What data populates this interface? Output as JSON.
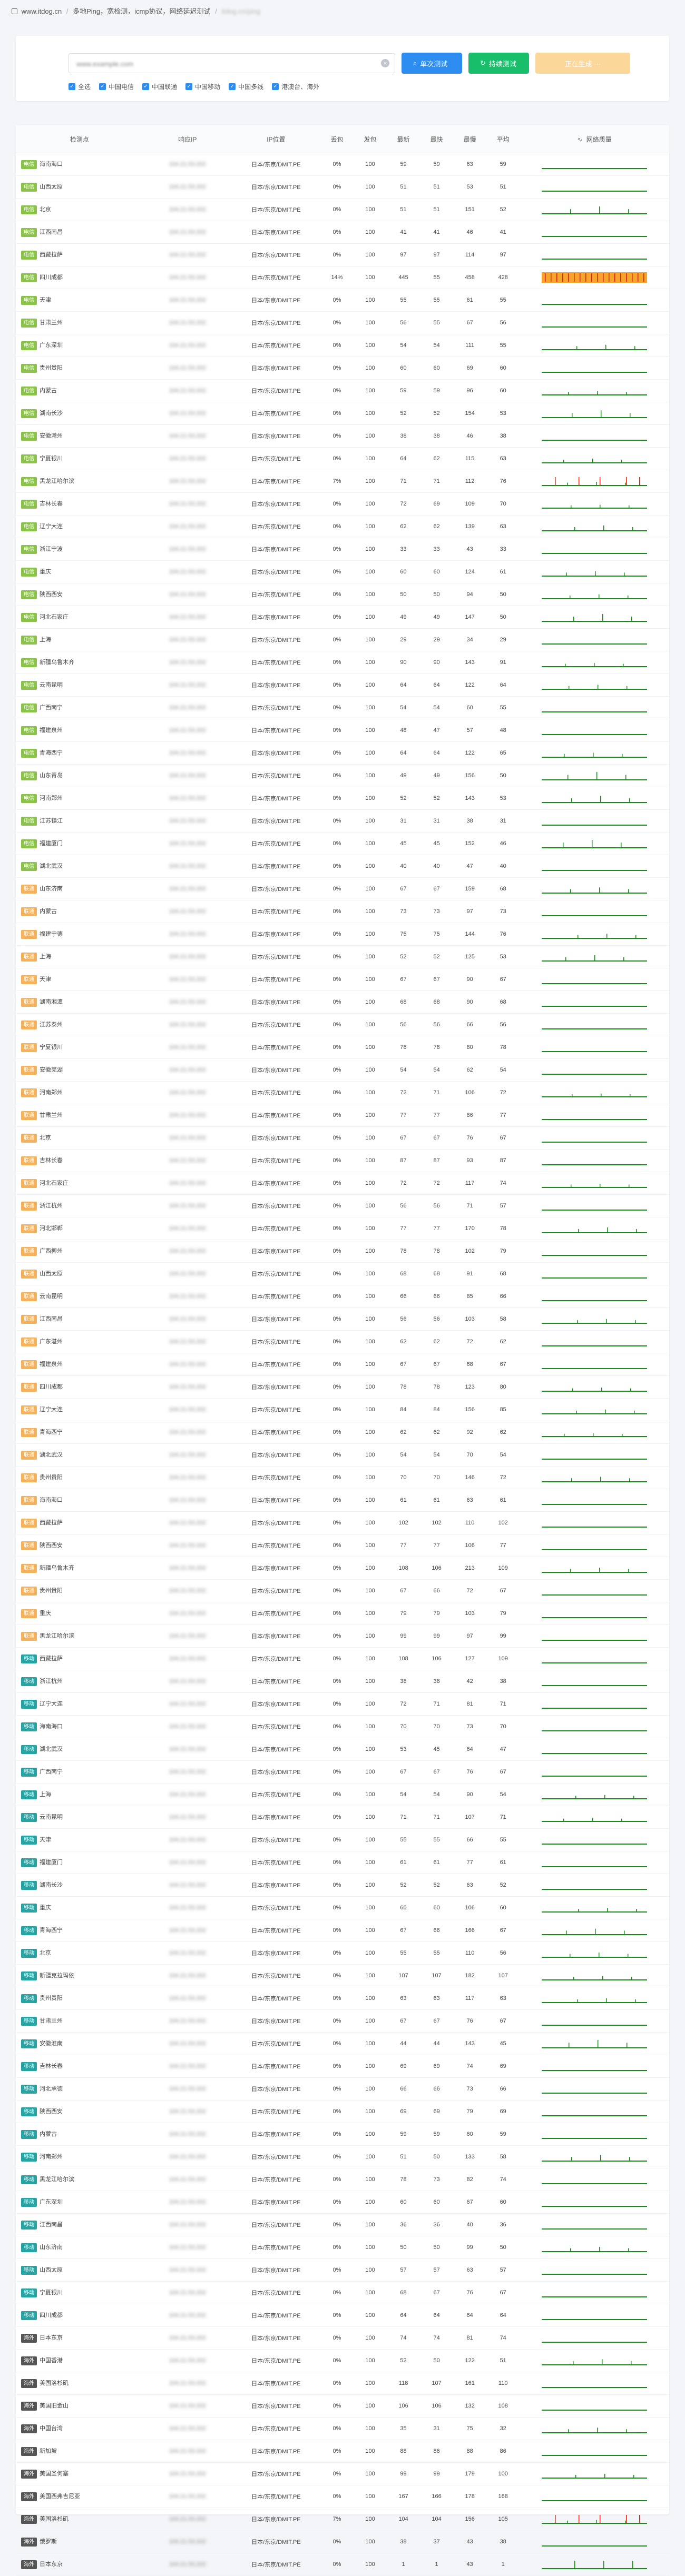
{
  "breadcrumb": {
    "home": "www.itdog.cn",
    "page": "多地Ping，宽检测，icmp协议，网络延迟测试",
    "current": "itdog.cn/ping"
  },
  "search": {
    "value": "www.example.com",
    "clear_icon": "close-icon",
    "single_test": "单次测试",
    "continuous_test": "持续测试",
    "download_report": "正在生成 ···"
  },
  "filters": [
    "全选",
    "中国电信",
    "中国联通",
    "中国移动",
    "中国多线",
    "港澳台、海外"
  ],
  "table": {
    "headers": [
      "检测点",
      "响应IP",
      "IP位置",
      "丢包",
      "发包",
      "最新",
      "最快",
      "最慢",
      "平均",
      "网络质量"
    ],
    "ip_placeholder": "104.21.53.202",
    "location": "日本/东京/DMIT.PE",
    "rows": [
      [
        "电信",
        "海南海口",
        "0%",
        "100",
        "59",
        "59",
        "63",
        "59"
      ],
      [
        "电信",
        "山西太原",
        "0%",
        "100",
        "51",
        "51",
        "53",
        "51"
      ],
      [
        "电信",
        "北京",
        "0%",
        "100",
        "51",
        "51",
        "151",
        "52"
      ],
      [
        "电信",
        "江西南昌",
        "0%",
        "100",
        "41",
        "41",
        "46",
        "41"
      ],
      [
        "电信",
        "西藏拉萨",
        "0%",
        "100",
        "97",
        "97",
        "114",
        "97"
      ],
      [
        "电信",
        "四川成都",
        "14%",
        "100",
        "445",
        "55",
        "458",
        "428"
      ],
      [
        "电信",
        "天津",
        "0%",
        "100",
        "55",
        "55",
        "61",
        "55"
      ],
      [
        "电信",
        "甘肃兰州",
        "0%",
        "100",
        "56",
        "55",
        "67",
        "56"
      ],
      [
        "电信",
        "广东深圳",
        "0%",
        "100",
        "54",
        "54",
        "111",
        "55"
      ],
      [
        "电信",
        "贵州贵阳",
        "0%",
        "100",
        "60",
        "60",
        "69",
        "60"
      ],
      [
        "电信",
        "内蒙古",
        "0%",
        "100",
        "59",
        "59",
        "96",
        "60"
      ],
      [
        "电信",
        "湖南长沙",
        "0%",
        "100",
        "52",
        "52",
        "154",
        "53"
      ],
      [
        "电信",
        "安徽滁州",
        "0%",
        "100",
        "38",
        "38",
        "46",
        "38"
      ],
      [
        "电信",
        "宁夏银川",
        "0%",
        "100",
        "64",
        "62",
        "115",
        "63"
      ],
      [
        "电信",
        "黑龙江哈尔滨",
        "7%",
        "100",
        "71",
        "71",
        "112",
        "76"
      ],
      [
        "电信",
        "吉林长春",
        "0%",
        "100",
        "72",
        "69",
        "109",
        "70"
      ],
      [
        "电信",
        "辽宁大连",
        "0%",
        "100",
        "62",
        "62",
        "139",
        "63"
      ],
      [
        "电信",
        "浙江宁波",
        "0%",
        "100",
        "33",
        "33",
        "43",
        "33"
      ],
      [
        "电信",
        "重庆",
        "0%",
        "100",
        "60",
        "60",
        "124",
        "61"
      ],
      [
        "电信",
        "陕西西安",
        "0%",
        "100",
        "50",
        "50",
        "94",
        "50"
      ],
      [
        "电信",
        "河北石家庄",
        "0%",
        "100",
        "49",
        "49",
        "147",
        "50"
      ],
      [
        "电信",
        "上海",
        "0%",
        "100",
        "29",
        "29",
        "34",
        "29"
      ],
      [
        "电信",
        "新疆乌鲁木齐",
        "0%",
        "100",
        "90",
        "90",
        "143",
        "91"
      ],
      [
        "电信",
        "云南昆明",
        "0%",
        "100",
        "64",
        "64",
        "122",
        "64"
      ],
      [
        "电信",
        "广西南宁",
        "0%",
        "100",
        "54",
        "54",
        "60",
        "55"
      ],
      [
        "电信",
        "福建泉州",
        "0%",
        "100",
        "48",
        "47",
        "57",
        "48"
      ],
      [
        "电信",
        "青海西宁",
        "0%",
        "100",
        "64",
        "64",
        "122",
        "65"
      ],
      [
        "电信",
        "山东青岛",
        "0%",
        "100",
        "49",
        "49",
        "156",
        "50"
      ],
      [
        "电信",
        "河南郑州",
        "0%",
        "100",
        "52",
        "52",
        "143",
        "53"
      ],
      [
        "电信",
        "江苏镇江",
        "0%",
        "100",
        "31",
        "31",
        "38",
        "31"
      ],
      [
        "电信",
        "福建厦门",
        "0%",
        "100",
        "45",
        "45",
        "152",
        "46"
      ],
      [
        "电信",
        "湖北武汉",
        "0%",
        "100",
        "40",
        "40",
        "47",
        "40"
      ],
      [
        "联通",
        "山东济南",
        "0%",
        "100",
        "67",
        "67",
        "159",
        "68"
      ],
      [
        "联通",
        "内蒙古",
        "0%",
        "100",
        "73",
        "73",
        "97",
        "73"
      ],
      [
        "联通",
        "福建宁德",
        "0%",
        "100",
        "75",
        "75",
        "144",
        "76"
      ],
      [
        "联通",
        "上海",
        "0%",
        "100",
        "52",
        "52",
        "125",
        "53"
      ],
      [
        "联通",
        "天津",
        "0%",
        "100",
        "67",
        "67",
        "90",
        "67"
      ],
      [
        "联通",
        "湖南湘潭",
        "0%",
        "100",
        "68",
        "68",
        "90",
        "68"
      ],
      [
        "联通",
        "江苏泰州",
        "0%",
        "100",
        "56",
        "56",
        "66",
        "56"
      ],
      [
        "联通",
        "宁夏银川",
        "0%",
        "100",
        "78",
        "78",
        "80",
        "78"
      ],
      [
        "联通",
        "安徽芜湖",
        "0%",
        "100",
        "54",
        "54",
        "62",
        "54"
      ],
      [
        "联通",
        "河南郑州",
        "0%",
        "100",
        "72",
        "71",
        "106",
        "72"
      ],
      [
        "联通",
        "甘肃兰州",
        "0%",
        "100",
        "77",
        "77",
        "86",
        "77"
      ],
      [
        "联通",
        "北京",
        "0%",
        "100",
        "67",
        "67",
        "76",
        "67"
      ],
      [
        "联通",
        "吉林长春",
        "0%",
        "100",
        "87",
        "87",
        "93",
        "87"
      ],
      [
        "联通",
        "河北石家庄",
        "0%",
        "100",
        "72",
        "72",
        "117",
        "74"
      ],
      [
        "联通",
        "浙江杭州",
        "0%",
        "100",
        "56",
        "56",
        "71",
        "57"
      ],
      [
        "联通",
        "河北邯郸",
        "0%",
        "100",
        "77",
        "77",
        "170",
        "78"
      ],
      [
        "联通",
        "广西柳州",
        "0%",
        "100",
        "78",
        "78",
        "102",
        "79"
      ],
      [
        "联通",
        "山西太原",
        "0%",
        "100",
        "68",
        "68",
        "91",
        "68"
      ],
      [
        "联通",
        "云南昆明",
        "0%",
        "100",
        "66",
        "66",
        "85",
        "66"
      ],
      [
        "联通",
        "江西南昌",
        "0%",
        "100",
        "56",
        "56",
        "103",
        "58"
      ],
      [
        "联通",
        "广东湛州",
        "0%",
        "100",
        "62",
        "62",
        "72",
        "62"
      ],
      [
        "联通",
        "福建泉州",
        "0%",
        "100",
        "67",
        "67",
        "68",
        "67"
      ],
      [
        "联通",
        "四川成都",
        "0%",
        "100",
        "78",
        "78",
        "123",
        "80"
      ],
      [
        "联通",
        "辽宁大连",
        "0%",
        "100",
        "84",
        "84",
        "156",
        "85"
      ],
      [
        "联通",
        "青海西宁",
        "0%",
        "100",
        "62",
        "62",
        "92",
        "62"
      ],
      [
        "联通",
        "湖北武汉",
        "0%",
        "100",
        "54",
        "54",
        "70",
        "54"
      ],
      [
        "联通",
        "贵州贵阳",
        "0%",
        "100",
        "70",
        "70",
        "146",
        "72"
      ],
      [
        "联通",
        "海南海口",
        "0%",
        "100",
        "61",
        "61",
        "63",
        "61"
      ],
      [
        "联通",
        "西藏拉萨",
        "0%",
        "100",
        "102",
        "102",
        "110",
        "102"
      ],
      [
        "联通",
        "陕西西安",
        "0%",
        "100",
        "77",
        "77",
        "106",
        "77"
      ],
      [
        "联通",
        "新疆乌鲁木齐",
        "0%",
        "100",
        "108",
        "106",
        "213",
        "109"
      ],
      [
        "联通",
        "贵州贵阳",
        "0%",
        "100",
        "67",
        "66",
        "72",
        "67"
      ],
      [
        "联通",
        "重庆",
        "0%",
        "100",
        "79",
        "79",
        "103",
        "79"
      ],
      [
        "联通",
        "黑龙江哈尔滨",
        "0%",
        "100",
        "99",
        "99",
        "97",
        "99"
      ],
      [
        "移动",
        "西藏拉萨",
        "0%",
        "100",
        "108",
        "106",
        "127",
        "109"
      ],
      [
        "移动",
        "浙江杭州",
        "0%",
        "100",
        "38",
        "38",
        "42",
        "38"
      ],
      [
        "移动",
        "辽宁大连",
        "0%",
        "100",
        "72",
        "71",
        "81",
        "71"
      ],
      [
        "移动",
        "海南海口",
        "0%",
        "100",
        "70",
        "70",
        "73",
        "70"
      ],
      [
        "移动",
        "湖北武汉",
        "0%",
        "100",
        "53",
        "45",
        "64",
        "47"
      ],
      [
        "移动",
        "广西南宁",
        "0%",
        "100",
        "67",
        "67",
        "76",
        "67"
      ],
      [
        "移动",
        "上海",
        "0%",
        "100",
        "54",
        "54",
        "90",
        "54"
      ],
      [
        "移动",
        "云南昆明",
        "0%",
        "100",
        "71",
        "71",
        "107",
        "71"
      ],
      [
        "移动",
        "天津",
        "0%",
        "100",
        "55",
        "55",
        "66",
        "55"
      ],
      [
        "移动",
        "福建厦门",
        "0%",
        "100",
        "61",
        "61",
        "77",
        "61"
      ],
      [
        "移动",
        "湖南长沙",
        "0%",
        "100",
        "52",
        "52",
        "63",
        "52"
      ],
      [
        "移动",
        "重庆",
        "0%",
        "100",
        "60",
        "60",
        "106",
        "60"
      ],
      [
        "移动",
        "青海西宁",
        "0%",
        "100",
        "67",
        "66",
        "166",
        "67"
      ],
      [
        "移动",
        "北京",
        "0%",
        "100",
        "55",
        "55",
        "110",
        "56"
      ],
      [
        "移动",
        "新疆克拉玛依",
        "0%",
        "100",
        "107",
        "107",
        "182",
        "107"
      ],
      [
        "移动",
        "贵州贵阳",
        "0%",
        "100",
        "63",
        "63",
        "117",
        "63"
      ],
      [
        "移动",
        "甘肃兰州",
        "0%",
        "100",
        "67",
        "67",
        "76",
        "67"
      ],
      [
        "移动",
        "安徽淮南",
        "0%",
        "100",
        "44",
        "44",
        "143",
        "45"
      ],
      [
        "移动",
        "吉林长春",
        "0%",
        "100",
        "69",
        "69",
        "74",
        "69"
      ],
      [
        "移动",
        "河北承德",
        "0%",
        "100",
        "66",
        "66",
        "73",
        "66"
      ],
      [
        "移动",
        "陕西西安",
        "0%",
        "100",
        "69",
        "69",
        "79",
        "69"
      ],
      [
        "移动",
        "内蒙古",
        "0%",
        "100",
        "59",
        "59",
        "60",
        "59"
      ],
      [
        "移动",
        "河南郑州",
        "0%",
        "100",
        "51",
        "50",
        "133",
        "58"
      ],
      [
        "移动",
        "黑龙江哈尔滨",
        "0%",
        "100",
        "78",
        "73",
        "82",
        "74"
      ],
      [
        "移动",
        "广东深圳",
        "0%",
        "100",
        "60",
        "60",
        "67",
        "60"
      ],
      [
        "移动",
        "江西南昌",
        "0%",
        "100",
        "36",
        "36",
        "40",
        "36"
      ],
      [
        "移动",
        "山东济南",
        "0%",
        "100",
        "50",
        "50",
        "99",
        "50"
      ],
      [
        "移动",
        "山西太原",
        "0%",
        "100",
        "57",
        "57",
        "63",
        "57"
      ],
      [
        "移动",
        "宁夏银川",
        "0%",
        "100",
        "68",
        "67",
        "76",
        "67"
      ],
      [
        "移动",
        "四川成都",
        "0%",
        "100",
        "64",
        "64",
        "64",
        "64"
      ],
      [
        "海外",
        "日本东京",
        "0%",
        "100",
        "74",
        "74",
        "81",
        "74"
      ],
      [
        "海外",
        "中国香港",
        "0%",
        "100",
        "52",
        "50",
        "122",
        "51"
      ],
      [
        "海外",
        "美国洛杉矶",
        "0%",
        "100",
        "118",
        "107",
        "161",
        "110"
      ],
      [
        "海外",
        "美国旧金山",
        "0%",
        "100",
        "106",
        "106",
        "132",
        "108"
      ],
      [
        "海外",
        "中国台湾",
        "0%",
        "100",
        "35",
        "31",
        "75",
        "32"
      ],
      [
        "海外",
        "新加坡",
        "0%",
        "100",
        "88",
        "86",
        "88",
        "86"
      ],
      [
        "海外",
        "美国圣何塞",
        "0%",
        "100",
        "99",
        "99",
        "179",
        "100"
      ],
      [
        "海外",
        "美国西弗吉尼亚",
        "0%",
        "100",
        "167",
        "166",
        "178",
        "168"
      ],
      [
        "海外",
        "美国洛杉矶",
        "7%",
        "100",
        "104",
        "104",
        "156",
        "105"
      ],
      [
        "海外",
        "俄罗斯",
        "0%",
        "100",
        "38",
        "37",
        "43",
        "38"
      ],
      [
        "海外",
        "日本东京",
        "0%",
        "100",
        "1",
        "1",
        "43",
        "1"
      ]
    ]
  },
  "colors": {
    "primary": "#2d8cf0",
    "success": "#19be6b",
    "warning": "#fcd79a",
    "telecom": "#8bc34a",
    "unicom": "#f5b25a",
    "mobile": "#26a3a3",
    "overseas": "#555555",
    "spark": "#1a8a1a",
    "loss_bg": "#f7a42c",
    "loss_mark": "#d81e06"
  }
}
